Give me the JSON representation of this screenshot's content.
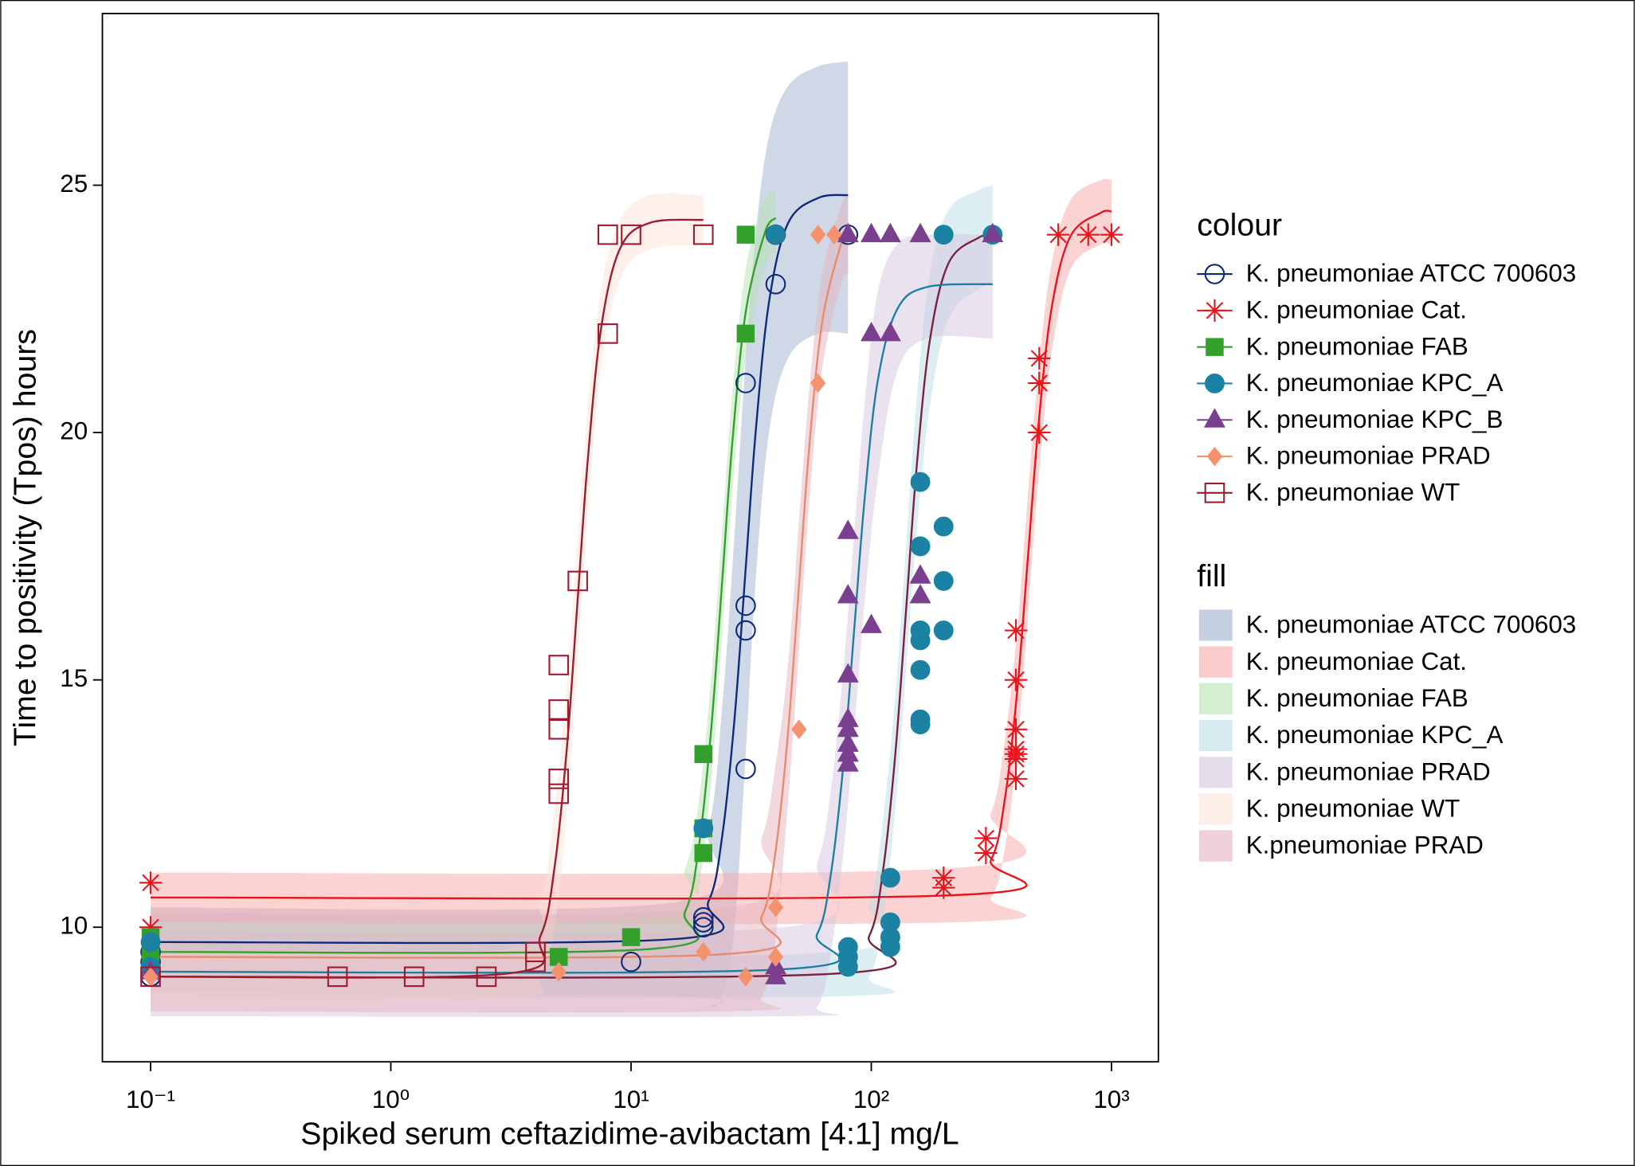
{
  "chart_data": {
    "type": "scatter",
    "x_label": "Spiked serum ceftazidime-avibactam [4:1] mg/L",
    "y_label": "Time to positivity (Tpos) hours",
    "x_log": true,
    "xlim": [
      0.063,
      1567
    ],
    "xticks": [
      {
        "value": 0.1,
        "label": "10⁻¹"
      },
      {
        "value": 1,
        "label": "10⁰"
      },
      {
        "value": 10,
        "label": "10¹"
      },
      {
        "value": 100,
        "label": "10²"
      },
      {
        "value": 1000,
        "label": "10³"
      }
    ],
    "ylim": [
      7.28,
      28.47
    ],
    "yticks": [
      10,
      15,
      20,
      25
    ],
    "colour_legend_title": "colour",
    "fill_legend_title": "fill",
    "series": [
      {
        "name": "K. pneumoniae ATCC 700603",
        "color": "#0d2a7a",
        "marker": "circle-open",
        "x": [
          0.1,
          0.1,
          0.1,
          10,
          20,
          20,
          20,
          30,
          30,
          30,
          30,
          40,
          40,
          80
        ],
        "values": [
          9.0,
          9.3,
          9.5,
          9.3,
          10.0,
          10.1,
          10.2,
          13.2,
          16.0,
          16.5,
          21.0,
          23.0,
          24.0,
          24.0
        ]
      },
      {
        "name": "K. pneumoniae Cat.",
        "color": "#e8141c",
        "marker": "asterisk",
        "x": [
          0.1,
          0.1,
          200,
          200,
          300,
          300,
          400,
          400,
          400,
          400,
          400,
          400,
          400,
          500,
          500,
          500,
          600,
          800,
          1000
        ],
        "values": [
          10.9,
          10.0,
          10.8,
          11.0,
          11.5,
          11.8,
          13.0,
          13.4,
          13.5,
          13.6,
          14.0,
          15.0,
          16.0,
          20.0,
          21.0,
          21.5,
          24.0,
          24.0,
          24.0
        ]
      },
      {
        "name": "K. pneumoniae FAB",
        "color": "#33a02c",
        "marker": "square",
        "x": [
          0.1,
          0.1,
          5,
          10,
          20,
          20,
          20,
          30,
          30
        ],
        "values": [
          9.4,
          9.8,
          9.4,
          9.8,
          11.5,
          12.0,
          13.5,
          22.0,
          24.0
        ]
      },
      {
        "name": "K. pneumoniae KPC_A",
        "color": "#1b82a3",
        "marker": "circle",
        "x": [
          0.1,
          0.1,
          20,
          40,
          80,
          80,
          80,
          120,
          120,
          120,
          120,
          160,
          160,
          160,
          160,
          160,
          160,
          160,
          200,
          200,
          200,
          200,
          320
        ],
        "values": [
          9.2,
          9.7,
          12.0,
          24.0,
          9.2,
          9.4,
          9.6,
          9.6,
          9.8,
          10.1,
          11.0,
          14.1,
          14.2,
          15.2,
          15.8,
          16.0,
          17.7,
          19.0,
          16.0,
          17.0,
          18.1,
          24.0,
          24.0
        ]
      },
      {
        "name": "K. pneumoniae KPC_B",
        "color": "#7b3f8f",
        "marker": "triangle",
        "x": [
          0.1,
          40,
          40,
          80,
          80,
          80,
          80,
          80,
          80,
          80,
          80,
          100,
          100,
          120,
          80,
          100,
          120,
          160,
          160,
          160,
          320
        ],
        "values": [
          9.1,
          9.0,
          9.2,
          13.3,
          13.5,
          13.7,
          14.0,
          14.2,
          15.1,
          16.7,
          18.0,
          16.1,
          22.0,
          22.0,
          24.0,
          24.0,
          24.0,
          24.0,
          16.7,
          17.1,
          24.0
        ]
      },
      {
        "name": "K. pneumoniae PRAD",
        "color": "#f4926d",
        "marker": "diamond",
        "x": [
          0.1,
          5,
          20,
          30,
          40,
          40,
          50,
          60,
          60,
          70
        ],
        "values": [
          9.0,
          9.1,
          9.5,
          9.0,
          9.4,
          10.4,
          14.0,
          21.0,
          24.0,
          24.0
        ]
      },
      {
        "name": "K. pneumoniae WT",
        "color": "#9e1a2e",
        "marker": "square-open",
        "x": [
          0.1,
          0.6,
          1.25,
          2.5,
          4,
          4,
          5,
          5,
          5,
          5,
          5,
          6,
          8,
          8,
          10,
          20
        ],
        "values": [
          9.0,
          9.0,
          9.0,
          9.0,
          9.3,
          9.5,
          12.7,
          13.0,
          14.0,
          14.4,
          15.3,
          17.0,
          22.0,
          24.0,
          24.0,
          24.0
        ]
      }
    ],
    "fits": [
      {
        "name": "K. pneumoniae ATCC 700603",
        "color": "#0d2a7a",
        "fill": "#9fb1cf",
        "x": [
          0.1,
          15,
          21,
          24,
          27,
          30,
          33,
          37.5,
          45,
          60,
          80
        ],
        "values": [
          9.7,
          9.76,
          10.52,
          11.87,
          14.25,
          17.25,
          20.0,
          22.63,
          24.23,
          24.74,
          24.8
        ],
        "lower": [
          8.7,
          8.6,
          8.4,
          8.6,
          10.0,
          13.5,
          17.0,
          20.0,
          21.5,
          22.0,
          22.0
        ],
        "upper": [
          10.4,
          10.5,
          12.0,
          14.5,
          18.0,
          21.5,
          24.0,
          26.0,
          27.0,
          27.4,
          27.5
        ]
      },
      {
        "name": "K. pneumoniae Cat.",
        "color": "#e8141c",
        "fill": "#f7a8a8",
        "x": [
          0.1,
          225,
          315,
          360,
          405,
          450,
          495,
          562.5,
          675,
          900,
          1000
        ],
        "values": [
          10.6,
          10.65,
          11.36,
          12.6,
          14.78,
          17.55,
          20.08,
          22.5,
          23.97,
          24.44,
          24.47
        ],
        "lower": [
          10.1,
          10.1,
          10.6,
          11.6,
          13.6,
          16.4,
          19.0,
          21.6,
          23.3,
          23.8,
          23.8
        ],
        "upper": [
          11.1,
          11.2,
          12.3,
          13.8,
          16.0,
          18.8,
          21.2,
          23.4,
          24.7,
          25.1,
          25.1
        ]
      },
      {
        "name": "K. pneumoniae FAB",
        "color": "#33a02c",
        "fill": "#b8e2b3",
        "x": [
          0.1,
          12,
          16.8,
          19.2,
          21.6,
          24,
          26.4,
          30,
          36,
          40
        ],
        "values": [
          9.5,
          9.56,
          10.32,
          11.67,
          14.05,
          17.05,
          19.8,
          22.43,
          24.03,
          24.34
        ],
        "lower": [
          8.9,
          8.9,
          9.5,
          10.8,
          13.0,
          16.0,
          18.8,
          21.5,
          23.3,
          23.6
        ],
        "upper": [
          10.1,
          10.2,
          11.2,
          12.6,
          15.1,
          18.1,
          20.8,
          23.3,
          24.7,
          24.9
        ]
      },
      {
        "name": "K. pneumoniae KPC_A",
        "color": "#7a1f3d",
        "fill": "#b9dde6",
        "x": [
          0.1,
          70,
          98,
          112,
          126,
          140,
          154,
          175,
          210,
          280,
          320
        ],
        "values": [
          9.0,
          9.06,
          9.82,
          11.16,
          13.52,
          16.5,
          19.23,
          21.84,
          23.43,
          23.94,
          23.99
        ],
        "lower": [
          8.6,
          8.6,
          9.0,
          10.2,
          12.4,
          15.3,
          17.9,
          20.5,
          22.3,
          22.9,
          23.0
        ],
        "upper": [
          9.4,
          9.5,
          10.5,
          12.2,
          14.7,
          17.8,
          20.6,
          23.2,
          24.5,
          24.9,
          25.0
        ]
      },
      {
        "name": "K. pneumoniae PRAD",
        "color": "#1b7fa0",
        "fill": "#d5c6e0",
        "x": [
          0.1,
          42.5,
          59.5,
          68,
          76.5,
          85,
          93.5,
          106,
          127.5,
          170,
          320
        ],
        "values": [
          9.1,
          9.15,
          9.86,
          11.1,
          13.28,
          16.05,
          18.58,
          21.0,
          22.47,
          22.94,
          23.0
        ],
        "lower": [
          8.2,
          8.2,
          8.4,
          9.5,
          11.5,
          14.0,
          16.5,
          19.0,
          21.2,
          21.9,
          21.9
        ],
        "upper": [
          9.9,
          10.0,
          11.3,
          12.8,
          15.2,
          18.0,
          20.5,
          22.8,
          23.8,
          24.0,
          24.0
        ]
      },
      {
        "name": "K. pneumoniae WT",
        "color": "#9e1a2e",
        "fill": "#fde2d8",
        "x": [
          0.1,
          3,
          4.2,
          4.8,
          5.4,
          6,
          6.6,
          7.5,
          9,
          12,
          20
        ],
        "values": [
          9.0,
          9.06,
          9.83,
          11.2,
          13.6,
          16.65,
          19.43,
          22.1,
          23.72,
          24.24,
          24.3
        ],
        "lower": [
          8.5,
          8.56,
          9.0,
          10.0,
          12.3,
          15.4,
          18.3,
          21.3,
          23.1,
          23.7,
          23.8
        ],
        "upper": [
          9.5,
          9.56,
          10.6,
          12.4,
          14.9,
          17.9,
          20.5,
          22.9,
          24.3,
          24.8,
          24.8
        ]
      },
      {
        "name": "K.pneumoniae PRAD",
        "color": "#e88a6c",
        "fill": "#e3b3be",
        "x": [
          0.1,
          25,
          35,
          40,
          45,
          50,
          55,
          62.5,
          75,
          80
        ],
        "values": [
          9.4,
          9.46,
          10.22,
          11.56,
          13.92,
          16.9,
          19.63,
          22.24,
          23.83,
          24.06
        ],
        "lower": [
          8.3,
          8.3,
          8.6,
          9.8,
          12.5,
          15.6,
          18.5,
          21.3,
          23.0,
          23.2
        ],
        "upper": [
          10.3,
          10.4,
          11.8,
          13.3,
          15.3,
          18.2,
          20.8,
          23.2,
          24.6,
          24.8
        ]
      }
    ]
  }
}
